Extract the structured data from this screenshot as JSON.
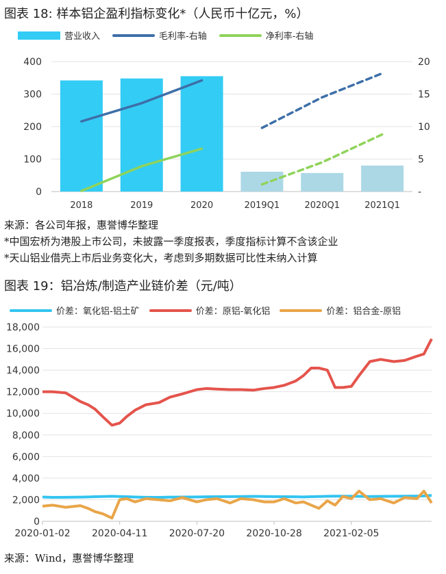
{
  "chart18": {
    "title": "图表 18: 样本铝企盈利指标变化*（人民币十亿元，%）",
    "legend": [
      {
        "name": "营业收入",
        "color": "#33ccf5",
        "type": "bar"
      },
      {
        "name": "毛利率-右轴",
        "color": "#3d6fa8",
        "type": "line"
      },
      {
        "name": "净利率-右轴",
        "color": "#8fd35a",
        "type": "line"
      }
    ],
    "notes": [
      "来源：各公司年报，惠誉博华整理",
      "*中国宏桥为港股上市公司，未披露一季度报表，季度指标计算不含该企业",
      "*天山铝业借壳上市后业务变化大，考虑到多期数据可比性未纳入计算"
    ]
  },
  "chart19": {
    "title": "图表 19：铝冶炼/制造产业链价差（元/吨）",
    "legend": [
      {
        "name": "价差：氧化铝-铝土矿",
        "color": "#33c4f0"
      },
      {
        "name": "价差：原铝-氧化铝",
        "color": "#e4544c"
      },
      {
        "name": "价差：铝合金-原铝",
        "color": "#e9a548"
      }
    ],
    "note": "来源：Wind，惠誉博华整理"
  },
  "chart_data": [
    {
      "type": "bar",
      "title": "图表 18: 样本铝企盈利指标变化*（人民币十亿元，%）",
      "categories": [
        "2018",
        "2019",
        "2020",
        "2019Q1",
        "2020Q1",
        "2021Q1"
      ],
      "series": [
        {
          "name": "营业收入",
          "axis": "left",
          "color": "#33ccf5",
          "color_quarter": "#acd8e6",
          "values": [
            342,
            348,
            355,
            61,
            57,
            80
          ]
        },
        {
          "name": "毛利率-右轴",
          "axis": "right",
          "color": "#3d6fa8",
          "values": [
            10.8,
            13.6,
            17.1,
            9.8,
            14.5,
            18.2
          ]
        },
        {
          "name": "净利率-右轴",
          "axis": "right",
          "color": "#8fd35a",
          "values": [
            0.1,
            3.9,
            6.6,
            1.1,
            4.5,
            8.8
          ]
        }
      ],
      "ylim": [
        0,
        400
      ],
      "yticks": [
        "0",
        "100",
        "200",
        "300",
        "400"
      ],
      "y2lim": [
        0,
        20
      ],
      "y2ticks": [
        "-",
        "5",
        "10",
        "15",
        "20"
      ],
      "grid": true,
      "legend_position": "top"
    },
    {
      "type": "line",
      "title": "图表 19：铝冶炼/制造产业链价差（元/吨）",
      "x_dates": [
        "2020-01-02",
        "2020-01-15",
        "2020-02-01",
        "2020-02-20",
        "2020-03-01",
        "2020-03-10",
        "2020-03-20",
        "2020-04-01",
        "2020-04-11",
        "2020-04-20",
        "2020-05-01",
        "2020-05-15",
        "2020-06-01",
        "2020-06-15",
        "2020-07-01",
        "2020-07-20",
        "2020-08-01",
        "2020-08-15",
        "2020-09-01",
        "2020-09-15",
        "2020-10-01",
        "2020-10-15",
        "2020-10-28",
        "2020-11-10",
        "2020-11-25",
        "2020-12-05",
        "2020-12-15",
        "2020-12-25",
        "2021-01-05",
        "2021-01-15",
        "2021-01-25",
        "2021-02-05",
        "2021-02-15",
        "2021-03-01",
        "2021-03-15",
        "2021-04-01",
        "2021-04-15",
        "2021-05-01",
        "2021-05-10",
        "2021-05-20"
      ],
      "xtick_labels": [
        "2020-01-02",
        "2020-04-11",
        "2020-07-20",
        "2020-10-28",
        "2021-02-05"
      ],
      "ylim": [
        0,
        18000
      ],
      "yticks": [
        "0",
        "2,000",
        "4,000",
        "6,000",
        "8,000",
        "10,000",
        "12,000",
        "14,000",
        "16,000",
        "18,000"
      ],
      "grid": true,
      "legend_position": "top",
      "series": [
        {
          "name": "价差：氧化铝-铝土矿",
          "color": "#33c4f0",
          "values": [
            2250,
            2220,
            2230,
            2240,
            2260,
            2280,
            2300,
            2320,
            2300,
            2280,
            2250,
            2230,
            2220,
            2240,
            2250,
            2260,
            2270,
            2280,
            2290,
            2300,
            2310,
            2300,
            2290,
            2280,
            2270,
            2260,
            2280,
            2300,
            2320,
            2330,
            2330,
            2320,
            2310,
            2300,
            2310,
            2320,
            2330,
            2340,
            2350,
            2400
          ]
        },
        {
          "name": "价差：原铝-氧化铝",
          "color": "#e4544c",
          "values": [
            12000,
            12000,
            11900,
            11100,
            10800,
            10400,
            9700,
            8900,
            9100,
            9700,
            10300,
            10800,
            11000,
            11500,
            11800,
            12200,
            12300,
            12250,
            12200,
            12200,
            12150,
            12300,
            12400,
            12600,
            13000,
            13500,
            14200,
            14200,
            14000,
            12400,
            12400,
            12500,
            13500,
            14800,
            15000,
            14800,
            14900,
            15300,
            15500,
            16900
          ]
        },
        {
          "name": "价差：铝合金-原铝",
          "color": "#e9a548",
          "values": [
            1400,
            1500,
            1300,
            1450,
            1200,
            900,
            700,
            300,
            2000,
            2100,
            1800,
            2100,
            2000,
            1900,
            2200,
            1800,
            2000,
            2100,
            1700,
            2100,
            2000,
            1800,
            1800,
            2100,
            1700,
            1800,
            1500,
            1200,
            1900,
            1500,
            2300,
            2100,
            2800,
            2000,
            2100,
            1700,
            2200,
            2100,
            2800,
            1700
          ]
        }
      ]
    }
  ]
}
